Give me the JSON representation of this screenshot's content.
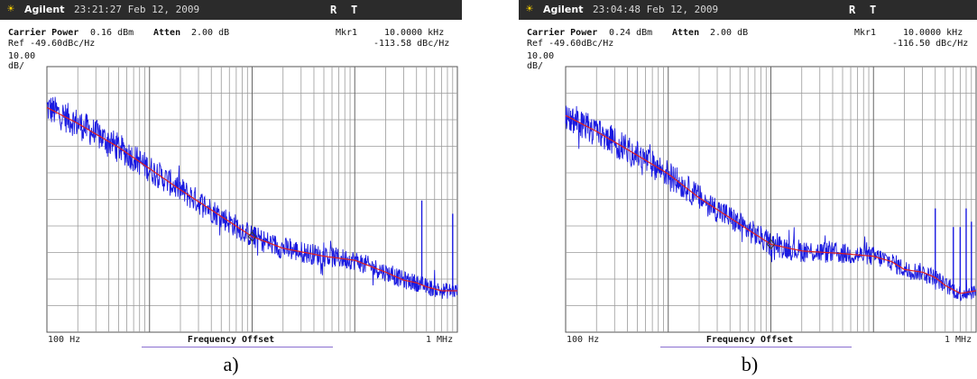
{
  "panels": [
    {
      "caption": "a)",
      "brand": "Agilent",
      "timestamp": "23:21:27  Feb 12, 2009",
      "status_r": "R",
      "status_t": "T",
      "carrier_label": "Carrier Power",
      "carrier_value": "0.16 dBm",
      "atten_label": "Atten",
      "atten_value": "2.00 dB",
      "ref": "Ref -49.60dBc/Hz",
      "scale_value": "10.00",
      "scale_unit": "dB/",
      "marker_label": "Mkr1",
      "marker_freq": "10.0000 kHz",
      "marker_level": "-113.58 dBc/Hz",
      "x_start": "100 Hz",
      "x_stop": "1 MHz",
      "x_label": "Frequency Offset"
    },
    {
      "caption": "b)",
      "brand": "Agilent",
      "timestamp": "23:04:48  Feb 12, 2009",
      "status_r": "R",
      "status_t": "T",
      "carrier_label": "Carrier Power",
      "carrier_value": "0.24 dBm",
      "atten_label": "Atten",
      "atten_value": "2.00 dB",
      "ref": "Ref -49.60dBc/Hz",
      "scale_value": "10.00",
      "scale_unit": "dB/",
      "marker_label": "Mkr1",
      "marker_freq": "10.0000 kHz",
      "marker_level": "-116.50 dBc/Hz",
      "x_start": "100 Hz",
      "x_stop": "1 MHz",
      "x_label": "Frequency Offset"
    }
  ],
  "colors": {
    "raw_trace": "#1a1ae0",
    "smoothed_trace": "#e02020",
    "grid": "#9a9a9a",
    "header_bar": "#2b2b2b"
  },
  "chart_data": [
    {
      "type": "line",
      "xscale": "log",
      "xlim": [
        100,
        1000000
      ],
      "ylim": [
        -149.6,
        -49.6
      ],
      "grid": true,
      "series": [
        {
          "x": [
            100,
            200,
            500,
            1000,
            2000,
            5000,
            10000,
            20000,
            50000,
            100000,
            200000,
            300000,
            400000,
            500000,
            700000,
            1000000
          ],
          "y": [
            -65,
            -71,
            -80,
            -88,
            -96,
            -106,
            -113.6,
            -118,
            -121,
            -122.5,
            -127,
            -130,
            -131,
            -132.5,
            -134,
            -134
          ]
        },
        {
          "x": [
            10000,
            20000,
            50000,
            100000,
            200000,
            300000,
            400000,
            450000,
            500000,
            600000,
            700000,
            750000,
            800000,
            900000,
            1000000
          ],
          "y": [
            -113.6,
            -117,
            -121,
            -123,
            -128,
            -131,
            -132,
            -135,
            -128,
            -134,
            -136,
            -133,
            -129,
            -136,
            -138
          ]
        }
      ]
    },
    {
      "type": "line",
      "xscale": "log",
      "xlim": [
        100,
        1000000
      ],
      "ylim": [
        -149.6,
        -49.6
      ],
      "grid": true,
      "series": [
        {
          "x": [
            100,
            200,
            500,
            1000,
            2000,
            5000,
            10000,
            20000,
            50000,
            100000,
            150000,
            200000,
            300000,
            400000,
            500000,
            700000,
            1000000
          ],
          "y": [
            -68,
            -74,
            -83,
            -90,
            -99,
            -109,
            -116.5,
            -119,
            -120,
            -121,
            -123,
            -126,
            -127,
            -129,
            -132,
            -135,
            -134
          ]
        },
        {
          "x": [
            10000,
            20000,
            50000,
            100000,
            200000,
            300000,
            400000,
            500000,
            700000,
            1000000
          ],
          "y": [
            -116.5,
            -118,
            -120,
            -122,
            -128,
            -127,
            -131,
            -133,
            -134,
            -134
          ]
        }
      ]
    }
  ]
}
